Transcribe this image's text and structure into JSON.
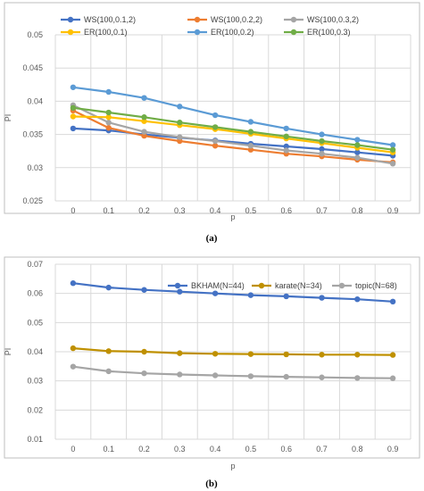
{
  "chart_data": [
    {
      "type": "line",
      "caption": "(a)",
      "xlabel": "p",
      "ylabel": "PI",
      "categories": [
        "0",
        "0.1",
        "0.2",
        "0.3",
        "0.4",
        "0.5",
        "0.6",
        "0.7",
        "0.8",
        "0.9"
      ],
      "ylim": [
        0.025,
        0.05
      ],
      "yticks": [
        "0.025",
        "0.03",
        "0.035",
        "0.04",
        "0.045",
        "0.05"
      ],
      "grid": true,
      "legend_position": "top",
      "series": [
        {
          "name": "WS(100,0.1,2)",
          "color": "#4472C4",
          "values": [
            0.0359,
            0.0356,
            0.035,
            0.0345,
            0.0341,
            0.0336,
            0.0332,
            0.0328,
            0.0323,
            0.0318
          ]
        },
        {
          "name": "WS(100,0.2,2)",
          "color": "#ED7D31",
          "values": [
            0.0386,
            0.036,
            0.0348,
            0.034,
            0.0333,
            0.0327,
            0.0321,
            0.0317,
            0.0312,
            0.0308
          ]
        },
        {
          "name": "WS(100,0.3,2)",
          "color": "#A5A5A5",
          "values": [
            0.0394,
            0.0368,
            0.0354,
            0.0346,
            0.034,
            0.0333,
            0.0326,
            0.0321,
            0.0315,
            0.0306
          ]
        },
        {
          "name": "ER(100,0.1)",
          "color": "#FFC000",
          "values": [
            0.0377,
            0.0376,
            0.037,
            0.0364,
            0.0358,
            0.0351,
            0.0344,
            0.0337,
            0.033,
            0.0323
          ]
        },
        {
          "name": "ER(100,0.2)",
          "color": "#5B9BD5",
          "values": [
            0.0421,
            0.0414,
            0.0405,
            0.0392,
            0.0379,
            0.0369,
            0.0359,
            0.035,
            0.0342,
            0.0334
          ]
        },
        {
          "name": "ER(100,0.3)",
          "color": "#70AD47",
          "values": [
            0.039,
            0.0383,
            0.0376,
            0.0368,
            0.0361,
            0.0354,
            0.0347,
            0.034,
            0.0334,
            0.0327
          ]
        }
      ]
    },
    {
      "type": "line",
      "caption": "(b)",
      "xlabel": "p",
      "ylabel": "PI",
      "categories": [
        "0",
        "0.1",
        "0.2",
        "0.3",
        "0.4",
        "0.5",
        "0.6",
        "0.7",
        "0.8",
        "0.9"
      ],
      "ylim": [
        0.01,
        0.07
      ],
      "yticks": [
        "0.01",
        "0.02",
        "0.03",
        "0.04",
        "0.05",
        "0.06",
        "0.07"
      ],
      "grid": true,
      "legend_position": "top-right",
      "series": [
        {
          "name": "BKHAM(N=44)",
          "color": "#4472C4",
          "values": [
            0.0635,
            0.062,
            0.0612,
            0.0606,
            0.06,
            0.0594,
            0.059,
            0.0585,
            0.058,
            0.0572
          ]
        },
        {
          "name": "karate(N=34)",
          "color": "#BF9000",
          "values": [
            0.0412,
            0.0402,
            0.04,
            0.0395,
            0.0393,
            0.0392,
            0.0391,
            0.039,
            0.039,
            0.0389
          ]
        },
        {
          "name": "topic(N=68)",
          "color": "#A5A5A5",
          "values": [
            0.0349,
            0.0333,
            0.0326,
            0.0322,
            0.0319,
            0.0316,
            0.0314,
            0.0312,
            0.031,
            0.0309
          ]
        }
      ]
    }
  ]
}
